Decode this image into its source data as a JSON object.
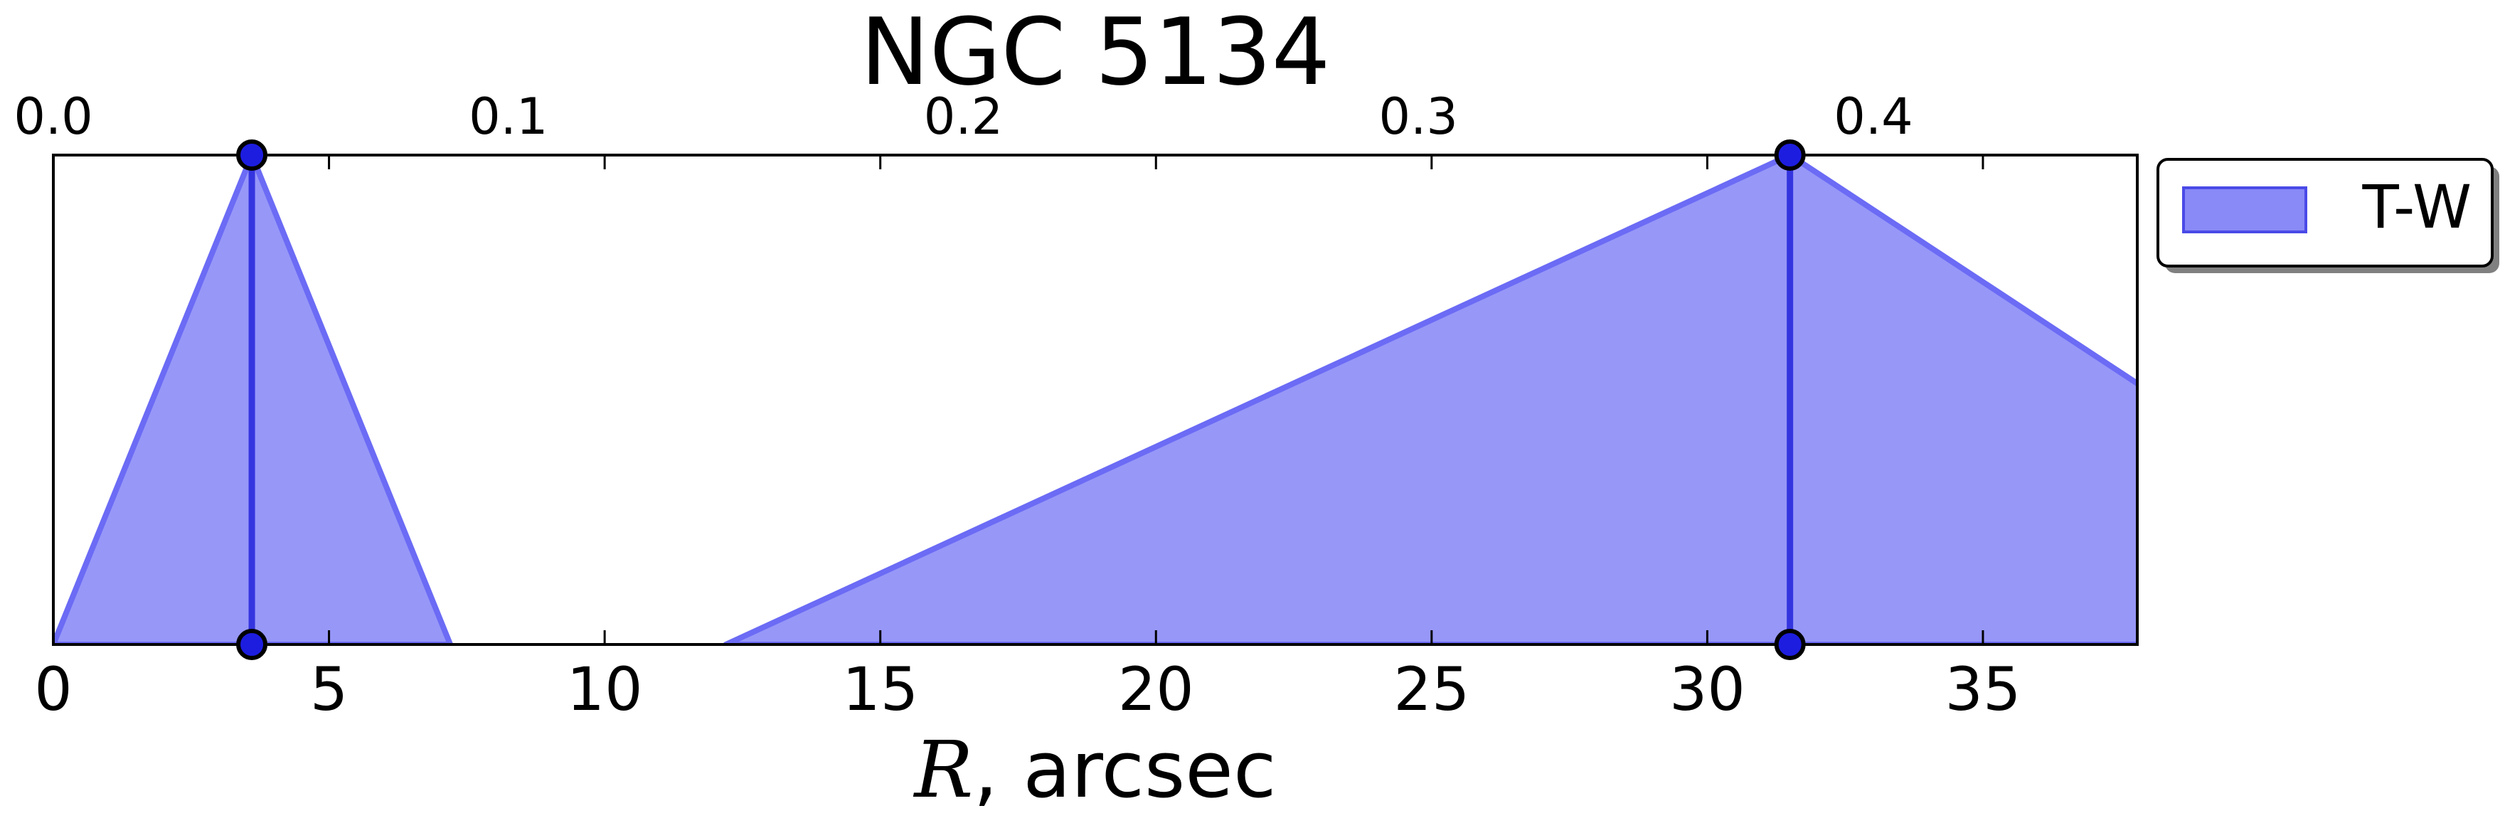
{
  "chart_data": {
    "type": "area",
    "title": "NGC 5134",
    "xlabel_var": "R",
    "xlabel_unit": ", arcsec",
    "xlim": [
      0,
      37.8
    ],
    "ylim": [
      0,
      1
    ],
    "grid": false,
    "legend_position": "outside-right",
    "x_ticks": [
      0,
      5,
      10,
      15,
      20,
      25,
      30,
      35
    ],
    "top_axis": {
      "xlim": [
        0,
        0.458
      ],
      "ticks": [
        0.0,
        0.1,
        0.2,
        0.3,
        0.4
      ],
      "tick_labels": [
        "0.0",
        "0.1",
        "0.2",
        "0.3",
        "0.4"
      ]
    },
    "series": [
      {
        "name": "T-W",
        "color": "#6b6bf5",
        "triangles": [
          {
            "left": 0.0,
            "peak": 3.6,
            "right": 7.2
          },
          {
            "left": 12.2,
            "peak": 31.5,
            "right": 45.0
          }
        ],
        "markers_x": [
          3.6,
          31.5
        ]
      }
    ]
  }
}
